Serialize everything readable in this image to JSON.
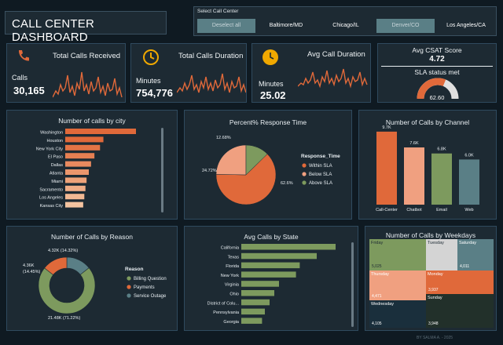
{
  "header": {
    "title": "CALL CENTER DASHBOARD"
  },
  "slicer": {
    "label": "Select Call Center",
    "options": [
      {
        "label": "Deselect all",
        "selected": true
      },
      {
        "label": "Baltimore/MD",
        "selected": false
      },
      {
        "label": "Chicago/IL",
        "selected": false
      },
      {
        "label": "Denver/CO",
        "selected": true
      },
      {
        "label": "Los Angeles/CA",
        "selected": false
      }
    ]
  },
  "kpis": {
    "total_calls": {
      "title": "Total Calls Received",
      "label": "Calls",
      "value": "30,165",
      "icon": "phone-icon"
    },
    "total_duration": {
      "title": "Total Calls Duration",
      "label": "Minutes",
      "value": "754,776",
      "icon": "clock-icon"
    },
    "avg_duration": {
      "title": "Avg Call Duration",
      "label": "Minutes",
      "value": "25.02",
      "icon": "clock-icon"
    },
    "csat": {
      "title": "Avg CSAT Score",
      "value": "4.72",
      "sla_title": "SLA status met",
      "sla_value": "62.60",
      "sla_fraction": 0.626
    }
  },
  "colors": {
    "orange": "#e0693a",
    "salmon": "#f0a080",
    "peach": "#f5c0a0",
    "green": "#7d9a5e",
    "teal": "#5a7f86",
    "panel": "#1d2a33",
    "background": "#0f1a22"
  },
  "city_chart": {
    "title": "Number of calls by city",
    "type": "bar",
    "categories": [
      "Washington",
      "Houston",
      "New York City",
      "El Paso",
      "Dallas",
      "Atlanta",
      "Miami",
      "Sacramento",
      "Los Angeles",
      "Kansas City"
    ],
    "values": [
      3150,
      1700,
      1550,
      1300,
      1150,
      1050,
      950,
      900,
      850,
      800
    ]
  },
  "response_chart": {
    "title": "Percent% Response Time",
    "type": "pie",
    "legend_title": "Response_Time",
    "labels": [
      "Within SLA",
      "Below SLA",
      "Above SLA"
    ],
    "values": [
      62.6,
      24.72,
      12.68
    ],
    "value_labels": [
      "62.6%",
      "24.72%",
      "12.68%"
    ]
  },
  "channel_chart": {
    "title": "Number of Calls by Channel",
    "type": "bar",
    "categories": [
      "Call-Center",
      "Chatbot",
      "Email",
      "Web"
    ],
    "values": [
      9.7,
      7.6,
      6.8,
      6.0
    ],
    "value_labels": [
      "9.7K",
      "7.6K",
      "6.8K",
      "6.0K"
    ]
  },
  "reason_chart": {
    "title": "Number of Calls by Reason",
    "type": "pie",
    "legend_title": "Reason",
    "labels": [
      "Billing Question",
      "Payments",
      "Service Outage"
    ],
    "values": [
      21.48,
      4.36,
      4.32
    ],
    "value_labels": [
      "21.48K (71.22%)",
      "4.36K (14.45%)",
      "4.32K (14.32%)"
    ]
  },
  "state_chart": {
    "title": "Avg Calls by State",
    "type": "bar",
    "categories": [
      "California",
      "Texas",
      "Florida",
      "New York",
      "Virginia",
      "Ohio",
      "District of Colu...",
      "Pennsylvania",
      "Georgia"
    ],
    "values": [
      100,
      80,
      62,
      58,
      40,
      35,
      30,
      25,
      22
    ]
  },
  "weekday_chart": {
    "title": "Number of Calls by Weekdays",
    "type": "treemap",
    "cells": [
      {
        "label": "Friday",
        "value": "5,025"
      },
      {
        "label": "Tuesday",
        "value": ""
      },
      {
        "label": "Saturday",
        "value": "4,011"
      },
      {
        "label": "Thursday",
        "value": "4,471"
      },
      {
        "label": "Monday",
        "value": "3,937"
      },
      {
        "label": "Wednesday",
        "value": "4,105"
      },
      {
        "label": "Sunday",
        "value": "3,948"
      }
    ]
  },
  "watermark": "BY SALMA A. - 2025"
}
